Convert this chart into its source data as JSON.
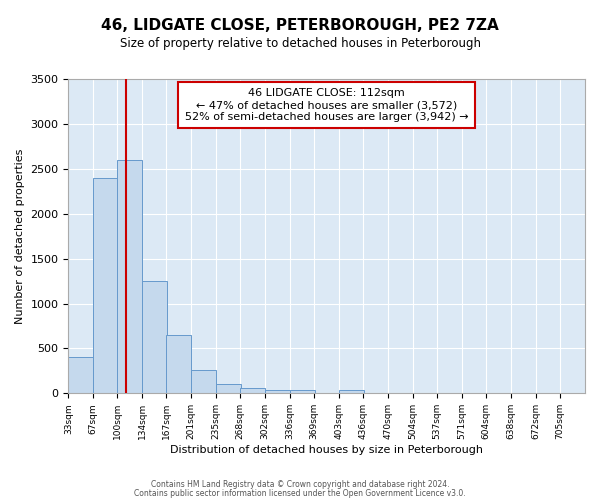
{
  "title": "46, LIDGATE CLOSE, PETERBOROUGH, PE2 7ZA",
  "subtitle": "Size of property relative to detached houses in Peterborough",
  "xlabel": "Distribution of detached houses by size in Peterborough",
  "ylabel": "Number of detached properties",
  "footnote1": "Contains HM Land Registry data © Crown copyright and database right 2024.",
  "footnote2": "Contains public sector information licensed under the Open Government Licence v3.0.",
  "bin_labels": [
    "33sqm",
    "67sqm",
    "100sqm",
    "134sqm",
    "167sqm",
    "201sqm",
    "235sqm",
    "268sqm",
    "302sqm",
    "336sqm",
    "369sqm",
    "403sqm",
    "436sqm",
    "470sqm",
    "504sqm",
    "537sqm",
    "571sqm",
    "604sqm",
    "638sqm",
    "672sqm",
    "705sqm"
  ],
  "bar_values": [
    400,
    2400,
    2600,
    1250,
    650,
    260,
    100,
    55,
    40,
    40,
    0,
    35,
    0,
    0,
    0,
    0,
    0,
    0,
    0,
    0,
    0
  ],
  "bar_color": "#c5d9ed",
  "bar_edge_color": "#6699cc",
  "fig_background": "#ffffff",
  "ax_background": "#dce9f5",
  "grid_color": "#ffffff",
  "annotation_box_edge": "#cc0000",
  "vline_color": "#cc0000",
  "property_label": "46 LIDGATE CLOSE: 112sqm",
  "annotation_line1": "← 47% of detached houses are smaller (3,572)",
  "annotation_line2": "52% of semi-detached houses are larger (3,942) →",
  "vline_x": 112,
  "ylim": [
    0,
    3500
  ],
  "yticks": [
    0,
    500,
    1000,
    1500,
    2000,
    2500,
    3000,
    3500
  ],
  "bin_edges": [
    33,
    67,
    100,
    134,
    167,
    201,
    235,
    268,
    302,
    336,
    369,
    403,
    436,
    470,
    504,
    537,
    571,
    604,
    638,
    672,
    705
  ],
  "bin_width": 34
}
